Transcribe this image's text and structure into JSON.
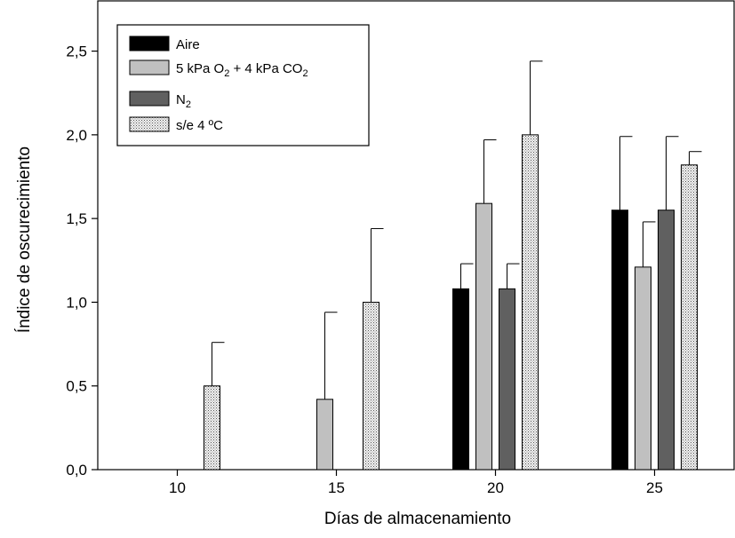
{
  "chart_data": {
    "type": "bar",
    "xlabel": "Días de almacenamiento",
    "ylabel": "Índice de oscurecimiento",
    "categories": [
      "10",
      "15",
      "20",
      "25"
    ],
    "ylim": [
      0,
      2.8
    ],
    "yticks": [
      "0,0",
      "0,5",
      "1,0",
      "1,5",
      "2,0",
      "2,5"
    ],
    "ytick_values": [
      0,
      0.5,
      1.0,
      1.5,
      2.0,
      2.5
    ],
    "grid": false,
    "legend_position": "top-left",
    "series": [
      {
        "name": "Aire",
        "legend_parts": [
          "Aire"
        ],
        "fill": "#000000",
        "pattern": "solid",
        "values": [
          0,
          0,
          1.08,
          1.55
        ],
        "errors": [
          0,
          0,
          0.15,
          0.44
        ]
      },
      {
        "name": "5 kPa O2 + 4 kPa CO2",
        "legend_parts": [
          "5 kPa O",
          "2",
          " + 4 kPa CO",
          "2"
        ],
        "fill": "#c0c0c0",
        "pattern": "solid",
        "values": [
          0,
          0.42,
          1.59,
          1.21
        ],
        "errors": [
          0,
          0.52,
          0.38,
          0.27
        ]
      },
      {
        "name": "N2",
        "legend_parts": [
          "N",
          "2"
        ],
        "fill": "#606060",
        "pattern": "solid",
        "values": [
          0,
          0,
          1.08,
          1.55
        ],
        "errors": [
          0,
          0,
          0.15,
          0.44
        ]
      },
      {
        "name": "s/e 4 ºC",
        "legend_parts": [
          "s/e 4 ºC"
        ],
        "fill": "#e8e8e8",
        "pattern": "dotted",
        "values": [
          0.5,
          1.0,
          2.0,
          1.82
        ],
        "errors": [
          0.26,
          0.44,
          0.44,
          0.08
        ]
      }
    ]
  }
}
